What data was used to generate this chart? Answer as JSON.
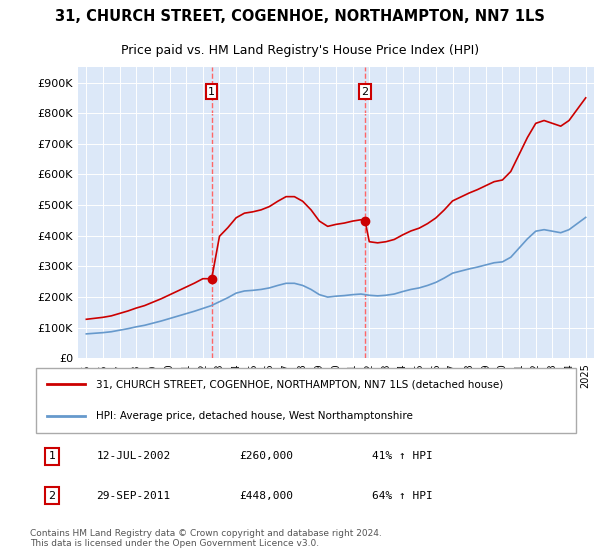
{
  "title_line1": "31, CHURCH STREET, COGENHOE, NORTHAMPTON, NN7 1LS",
  "title_line2": "Price paid vs. HM Land Registry's House Price Index (HPI)",
  "ylabel": "",
  "background_color": "#f0f4ff",
  "plot_bg_color": "#dce8f8",
  "legend_line1": "31, CHURCH STREET, COGENHOE, NORTHAMPTON, NN7 1LS (detached house)",
  "legend_line2": "HPI: Average price, detached house, West Northamptonshire",
  "annotation1": {
    "label": "1",
    "date": "12-JUL-2002",
    "price": "£260,000",
    "pct": "41% ↑ HPI"
  },
  "annotation2": {
    "label": "2",
    "date": "29-SEP-2011",
    "price": "£448,000",
    "pct": "64% ↑ HPI"
  },
  "footer": "Contains HM Land Registry data © Crown copyright and database right 2024.\nThis data is licensed under the Open Government Licence v3.0.",
  "red_color": "#cc0000",
  "blue_color": "#6699cc",
  "vline_color": "#ff6666",
  "ylim": [
    0,
    950000
  ],
  "yticks": [
    0,
    100000,
    200000,
    300000,
    400000,
    500000,
    600000,
    700000,
    800000,
    900000
  ],
  "ytick_labels": [
    "£0",
    "£100K",
    "£200K",
    "£300K",
    "£400K",
    "£500K",
    "£600K",
    "£700K",
    "£800K",
    "£900K"
  ],
  "xmin": 1994.5,
  "xmax": 2025.5,
  "marker1_x": 2002.53,
  "marker1_y": 260000,
  "marker2_x": 2011.75,
  "marker2_y": 448000,
  "vline1_x": 2002.53,
  "vline2_x": 2011.75
}
